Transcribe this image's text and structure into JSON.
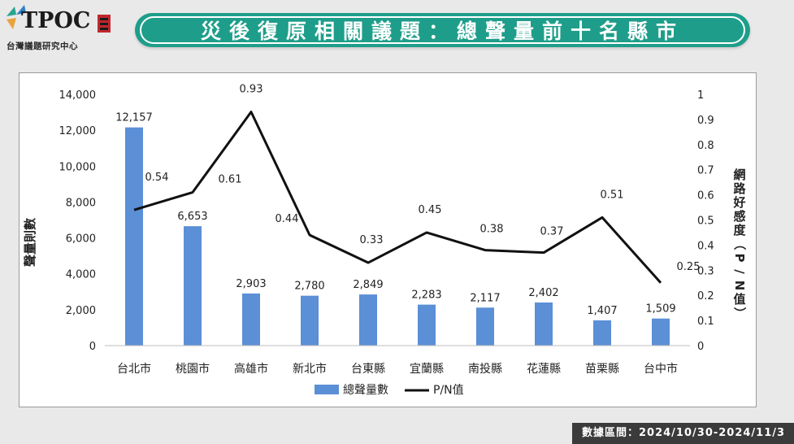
{
  "header": {
    "logo_text": "TPOC",
    "logo_subtitle": "台灣議題研究中心",
    "title": "災後復原相關議題：總聲量前十名縣市"
  },
  "footer": {
    "date_range": "數據區間：2024/10/30-2024/11/3"
  },
  "colors": {
    "bar": "#5b8fd6",
    "line": "#111111",
    "banner": "#1e9e8a"
  },
  "chart_data": {
    "type": "bar",
    "categories": [
      "台北市",
      "桃園市",
      "高雄市",
      "新北市",
      "台東縣",
      "宜蘭縣",
      "南投縣",
      "花蓮縣",
      "苗栗縣",
      "台中市"
    ],
    "series": [
      {
        "name": "總聲量數",
        "type": "bar",
        "axis": "left",
        "values": [
          12157,
          6653,
          2903,
          2780,
          2849,
          2283,
          2117,
          2402,
          1407,
          1509
        ],
        "labels": [
          "12,157",
          "6,653",
          "2,903",
          "2,780",
          "2,849",
          "2,283",
          "2,117",
          "2,402",
          "1,407",
          "1,509"
        ]
      },
      {
        "name": "P/N值",
        "type": "line",
        "axis": "right",
        "values": [
          0.54,
          0.61,
          0.93,
          0.44,
          0.33,
          0.45,
          0.38,
          0.37,
          0.51,
          0.25
        ],
        "labels": [
          "0.54",
          "0.61",
          "0.93",
          "0.44",
          "0.33",
          "0.45",
          "0.38",
          "0.37",
          "0.51",
          "0.25"
        ]
      }
    ],
    "ylabel": "聲量則數",
    "y2label": "網路好感度（P/N值）",
    "ylim": [
      0,
      14000
    ],
    "y2lim": [
      0,
      1
    ],
    "yticks": [
      "0",
      "2,000",
      "4,000",
      "6,000",
      "8,000",
      "10,000",
      "12,000",
      "14,000"
    ],
    "y2ticks": [
      "0",
      "0.1",
      "0.2",
      "0.3",
      "0.4",
      "0.5",
      "0.6",
      "0.7",
      "0.8",
      "0.9",
      "1"
    ],
    "legend_position": "bottom",
    "grid": false
  }
}
